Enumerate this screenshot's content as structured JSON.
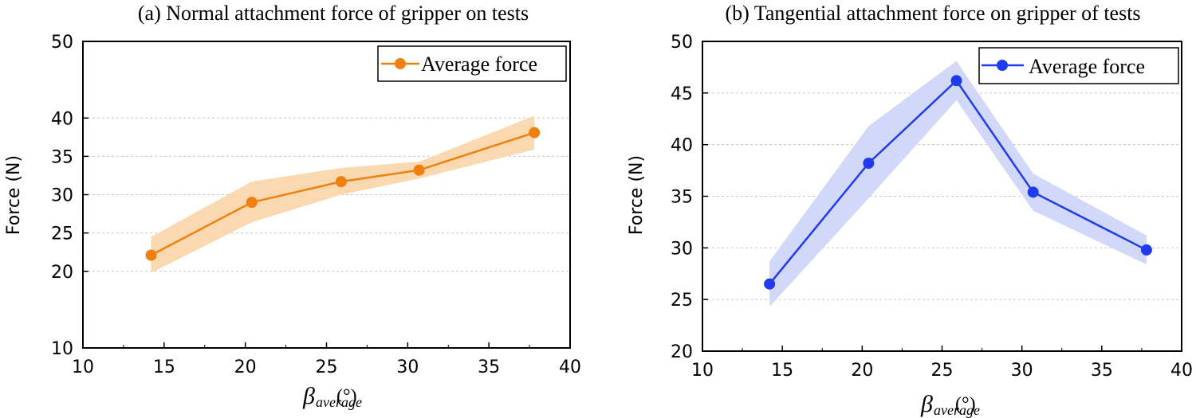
{
  "chart_data": [
    {
      "type": "line",
      "title": "(a) Normal attachment force of gripper on tests",
      "xlabel": "β",
      "xlabel_subscript": "average",
      "xlabel_unit": "(°)",
      "ylabel": "Force (N)",
      "xlim": [
        10,
        40
      ],
      "ylim": [
        10,
        50
      ],
      "xticks": [
        "10",
        "15",
        "20",
        "25",
        "30",
        "35",
        "40"
      ],
      "yticks": [
        "10",
        "20",
        "25",
        "30",
        "35",
        "40",
        "50"
      ],
      "grid": "horizontal dashed",
      "legend_position": "top-right",
      "series": [
        {
          "name": "Average force",
          "color": "#EF7F0F",
          "band_color": "#FBD9B0",
          "x": [
            14.2,
            20.4,
            25.9,
            30.7,
            37.8
          ],
          "y": [
            22.1,
            29.0,
            31.7,
            33.2,
            38.1
          ],
          "upper": [
            24.5,
            31.7,
            33.5,
            34.3,
            40.3
          ],
          "lower": [
            19.8,
            26.4,
            30.0,
            32.1,
            35.9
          ]
        }
      ]
    },
    {
      "type": "line",
      "title": "(b) Tangential attachment force on gripper of tests",
      "xlabel": "β",
      "xlabel_subscript": "average",
      "xlabel_unit": "(°)",
      "ylabel": "Force (N)",
      "xlim": [
        10,
        40
      ],
      "ylim": [
        20,
        50
      ],
      "xticks": [
        "10",
        "15",
        "20",
        "25",
        "30",
        "35",
        "40"
      ],
      "yticks": [
        "20",
        "25",
        "30",
        "35",
        "40",
        "45",
        "50"
      ],
      "grid": "horizontal dashed",
      "legend_position": "top-right",
      "series": [
        {
          "name": "Average force",
          "color": "#1F3BEF",
          "band_color": "#D2D8FA",
          "x": [
            14.2,
            20.4,
            25.9,
            30.7,
            37.8
          ],
          "y": [
            26.5,
            38.2,
            46.2,
            35.4,
            29.8
          ],
          "upper": [
            28.7,
            41.8,
            48.1,
            37.2,
            31.2
          ],
          "lower": [
            24.3,
            34.8,
            44.3,
            33.6,
            28.4
          ]
        }
      ]
    }
  ]
}
